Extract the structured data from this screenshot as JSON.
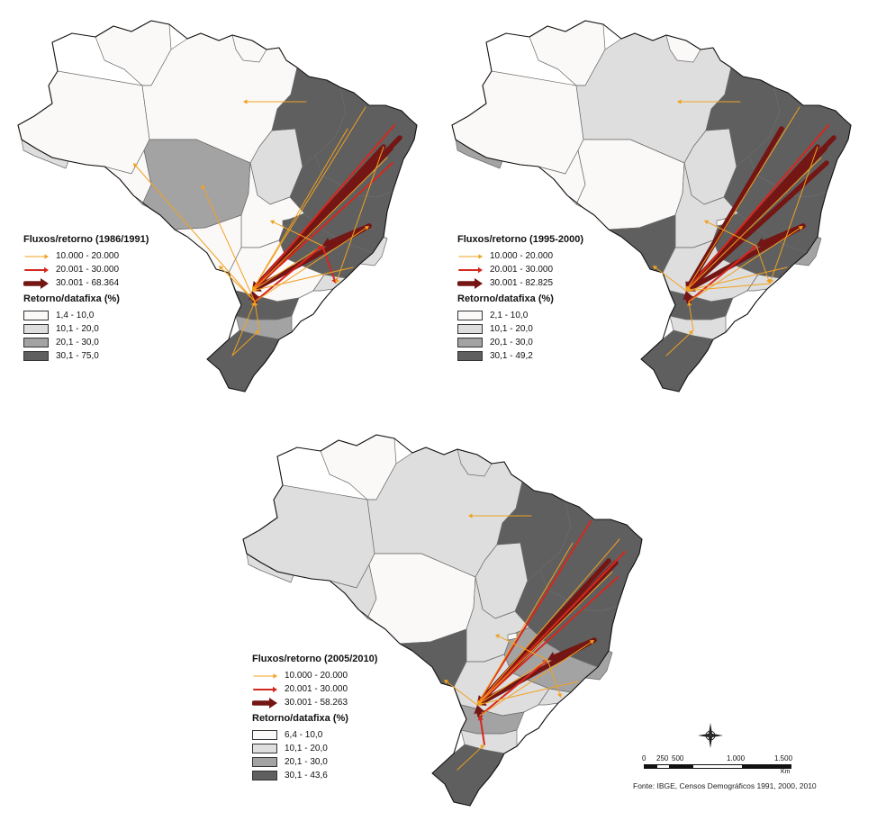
{
  "maps": [
    {
      "id": "1986-1991",
      "flows_title": "Fluxos/retorno (1986/1991)",
      "flow_classes": [
        "10.000 - 20.000",
        "20.001 - 30.000",
        "30.001 - 68.364"
      ],
      "share_title": "Retorno/datafixa (%)",
      "share_classes": [
        "1,4 - 10,0",
        "10,1 - 20,0",
        "20,1 - 30,0",
        "30,1 - 75,0"
      ]
    },
    {
      "id": "1995-2000",
      "flows_title": "Fluxos/retorno (1995-2000)",
      "flow_classes": [
        "10.000 - 20.000",
        "20.001 - 30.000",
        "30.001 - 82.825"
      ],
      "share_title": "Retorno/datafixa (%)",
      "share_classes": [
        "2,1 - 10,0",
        "10,1 - 20,0",
        "20,1 - 30,0",
        "30,1 - 49,2"
      ]
    },
    {
      "id": "2005-2010",
      "flows_title": "Fluxos/retorno (2005/2010)",
      "flow_classes": [
        "10.000 - 20.000",
        "20.001 - 30.000",
        "30.001 - 58.263"
      ],
      "share_title": "Retorno/datafixa (%)",
      "share_classes": [
        "6,4 - 10,0",
        "10,1 - 20,0",
        "20,1 - 30,0",
        "30,1 - 43,6"
      ]
    }
  ],
  "colors": {
    "class1": "#fbf9f8",
    "class2": "#dedede",
    "class3": "#a3a3a3",
    "class4": "#5f5f5f",
    "flow_small": "#f1a11f",
    "flow_medium": "#d5281e",
    "flow_large": "#741614",
    "border": "#6b6b6b",
    "coast": "#111111"
  },
  "scale": {
    "ticks": [
      "0",
      "250",
      "500",
      "1.000",
      "1.500"
    ],
    "unit": "Km"
  },
  "source": "Fonte: IBGE, Censos Demográficos 1991, 2000, 2010",
  "north_arrow_icon": "compass-rose-icon"
}
